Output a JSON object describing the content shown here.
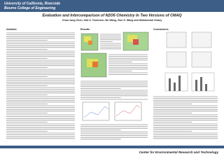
{
  "header": {
    "university": "University of California, Riverside",
    "college": "Bourns College of Engineering"
  },
  "title": "Evaluation and Intercomparison of N2O5 Chemistry In Two Versions of CMAQ",
  "authors": "Chao-Jung Chen, Gail S. Tonnesen, Bo Wang, Zion S. Wang and Mohammad Omary",
  "sections": {
    "abstract": "Abstract",
    "results": "Results",
    "conclusions": "Conclusions"
  },
  "footer": "Center for Environmental Research and Technology"
}
